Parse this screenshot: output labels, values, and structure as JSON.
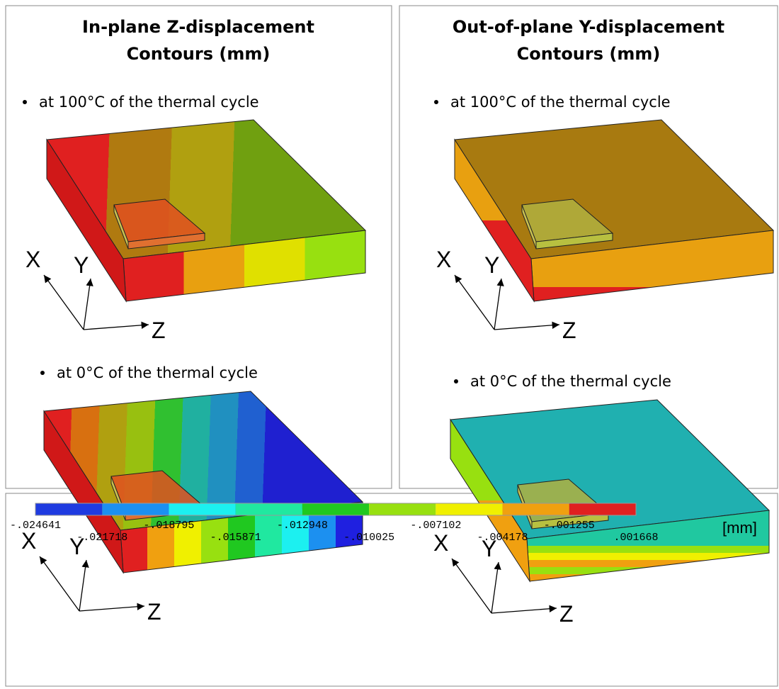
{
  "panels": [
    {
      "title": [
        "In-plane Z-displacement",
        "Contours (mm)"
      ],
      "plots": [
        {
          "caption": "at 100°C of the thermal cycle",
          "axes": [
            "X",
            "Y",
            "Z"
          ]
        },
        {
          "caption": "at 0°C of the thermal cycle",
          "axes": [
            "X",
            "Y",
            "Z"
          ]
        }
      ]
    },
    {
      "title": [
        "Out-of-plane Y-displacement",
        "Contours (mm)"
      ],
      "plots": [
        {
          "caption": "at 100°C of the thermal cycle",
          "axes": [
            "X",
            "Y",
            "Z"
          ]
        },
        {
          "caption": "at 0°C of the thermal cycle",
          "axes": [
            "X",
            "Y",
            "Z"
          ]
        }
      ]
    }
  ],
  "legend": {
    "colors": [
      "#1f3be0",
      "#1c90f0",
      "#1cf0f0",
      "#20e8a0",
      "#20c820",
      "#98e010",
      "#f0f000",
      "#f0a010",
      "#e02020"
    ],
    "labels": [
      "-.024641",
      "-.021718",
      "-.018795",
      "-.015871",
      "-.012948",
      "-.010025",
      "-.007102",
      "-.004178",
      "-.001255",
      ".001668"
    ],
    "unit": "[mm]"
  }
}
